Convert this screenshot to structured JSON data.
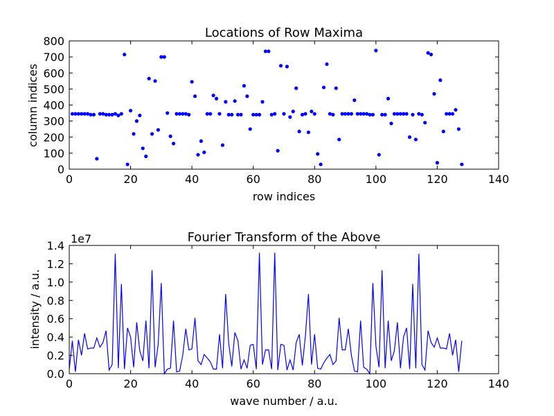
{
  "chart_data": [
    {
      "type": "scatter",
      "title": "Locations of Row Maxima",
      "xlabel": "row indices",
      "ylabel": "column indices",
      "xlim": [
        0,
        140
      ],
      "ylim": [
        0,
        800
      ],
      "xticks": [
        "0",
        "20",
        "40",
        "60",
        "80",
        "100",
        "120",
        "140"
      ],
      "yticks": [
        "0",
        "100",
        "200",
        "300",
        "400",
        "500",
        "600",
        "700",
        "800"
      ],
      "grid": false,
      "color": "#0000ff",
      "series": [
        {
          "x": [
            1,
            2,
            3,
            4,
            5,
            6,
            7,
            8,
            9,
            10,
            11,
            12,
            13,
            14,
            15,
            16,
            17,
            18,
            19,
            20,
            21,
            22,
            23,
            24,
            25,
            26,
            27,
            28,
            29,
            30,
            31,
            32,
            33,
            34,
            35,
            36,
            37,
            38,
            39,
            40,
            41,
            42,
            43,
            44,
            45,
            46,
            47,
            48,
            49,
            50,
            51,
            52,
            53,
            54,
            55,
            56,
            57,
            58,
            59,
            60,
            61,
            62,
            63,
            64,
            65,
            66,
            67,
            68,
            69,
            70,
            71,
            72,
            73,
            74,
            75,
            76,
            77,
            78,
            79,
            80,
            81,
            82,
            83,
            84,
            85,
            86,
            87,
            88,
            89,
            90,
            91,
            92,
            93,
            94,
            95,
            96,
            97,
            98,
            99,
            100,
            101,
            102,
            103,
            104,
            105,
            106,
            107,
            108,
            109,
            110,
            111,
            112,
            113,
            114,
            115,
            116,
            117,
            118,
            119,
            120,
            121,
            122,
            123,
            124,
            125,
            126,
            127,
            128
          ],
          "y": [
            345,
            345,
            345,
            345,
            345,
            345,
            340,
            340,
            65,
            345,
            345,
            340,
            340,
            340,
            345,
            335,
            345,
            715,
            30,
            365,
            220,
            300,
            335,
            130,
            80,
            565,
            220,
            550,
            245,
            700,
            700,
            350,
            205,
            160,
            345,
            345,
            345,
            345,
            340,
            545,
            455,
            90,
            175,
            105,
            345,
            345,
            460,
            440,
            345,
            150,
            420,
            340,
            340,
            425,
            340,
            340,
            520,
            455,
            250,
            340,
            340,
            340,
            420,
            735,
            735,
            340,
            345,
            115,
            645,
            345,
            640,
            325,
            360,
            505,
            235,
            340,
            345,
            230,
            360,
            345,
            95,
            30,
            510,
            655,
            345,
            340,
            505,
            185,
            345,
            345,
            345,
            345,
            430,
            345,
            345,
            345,
            345,
            340,
            340,
            740,
            90,
            340,
            340,
            440,
            285,
            345,
            345,
            345,
            345,
            345,
            200,
            340,
            185,
            345,
            340,
            290,
            725,
            715,
            470,
            40,
            555,
            235,
            345,
            345,
            345,
            370,
            250,
            30
          ]
        }
      ]
    },
    {
      "type": "line",
      "title": "Fourier Transform of the Above",
      "xlabel": "wave number / a.u.",
      "ylabel": "intensity / a.u.",
      "scale_label": "1e7",
      "xlim": [
        0,
        140
      ],
      "ylim": [
        0,
        1.4
      ],
      "xticks": [
        "0",
        "20",
        "40",
        "60",
        "80",
        "100",
        "120",
        "140"
      ],
      "yticks": [
        "0.0",
        "0.2",
        "0.4",
        "0.6",
        "0.8",
        "1.0",
        "1.2",
        "1.4"
      ],
      "grid": false,
      "color": "#0000ff",
      "series": [
        {
          "x": [
            0,
            1,
            2,
            3,
            4,
            5,
            6,
            7,
            8,
            9,
            10,
            11,
            12,
            13,
            14,
            15,
            16,
            17,
            18,
            19,
            20,
            21,
            22,
            23,
            24,
            25,
            26,
            27,
            28,
            29,
            30,
            31,
            32,
            33,
            34,
            35,
            36,
            37,
            38,
            39,
            40,
            41,
            42,
            43,
            44,
            45,
            46,
            47,
            48,
            49,
            50,
            51,
            52,
            53,
            54,
            55,
            56,
            57,
            58,
            59,
            60,
            61,
            62,
            63,
            64,
            65,
            66,
            67,
            68,
            69,
            70,
            71,
            72,
            73,
            74,
            75,
            76,
            77,
            78,
            79,
            80,
            81,
            82,
            83,
            84,
            85,
            86,
            87,
            88,
            89,
            90,
            91,
            92,
            93,
            94,
            95,
            96,
            97,
            98,
            99,
            100,
            101,
            102,
            103,
            104,
            105,
            106,
            107,
            108,
            109,
            110,
            111,
            112,
            113,
            114,
            115,
            116,
            117,
            118,
            119,
            120,
            121,
            122,
            123,
            124,
            125,
            126,
            127,
            128
          ],
          "values": [
            0.05,
            0.36,
            0.02,
            0.37,
            0.2,
            0.44,
            0.27,
            0.28,
            0.28,
            0.39,
            0.29,
            0.34,
            0.47,
            0.04,
            0.1,
            1.31,
            0.06,
            0.98,
            0.05,
            0.5,
            0.4,
            0.07,
            0.56,
            0.25,
            0.14,
            0.58,
            0.06,
            1.13,
            0.07,
            0.32,
            0.99,
            0.0,
            0.05,
            0.06,
            0.58,
            0.02,
            0.03,
            0.2,
            0.49,
            0.26,
            0.27,
            0.61,
            0.14,
            0.1,
            0.21,
            0.17,
            0.13,
            0.05,
            0.05,
            0.43,
            0.06,
            0.87,
            0.33,
            0.08,
            0.45,
            0.36,
            0.05,
            0.15,
            0.06,
            0.31,
            0.32,
            0.05,
            1.32,
            0.1,
            0.26,
            0.26,
            0.05,
            1.32,
            0.04,
            0.32,
            0.31,
            0.04,
            0.15,
            0.04,
            0.34,
            0.43,
            0.09,
            0.41,
            0.87,
            0.1,
            0.43,
            0.06,
            0.05,
            0.12,
            0.17,
            0.21,
            0.1,
            0.14,
            0.61,
            0.26,
            0.26,
            0.49,
            0.2,
            0.03,
            0.02,
            0.58,
            0.07,
            0.05,
            0.0,
            0.99,
            0.3,
            0.07,
            1.13,
            0.06,
            0.58,
            0.14,
            0.25,
            0.56,
            0.06,
            0.4,
            0.5,
            0.05,
            0.98,
            0.06,
            1.31,
            0.1,
            0.04,
            0.47,
            0.34,
            0.29,
            0.39,
            0.28,
            0.28,
            0.27,
            0.44,
            0.2,
            0.37,
            0.02,
            0.36
          ]
        }
      ]
    }
  ]
}
